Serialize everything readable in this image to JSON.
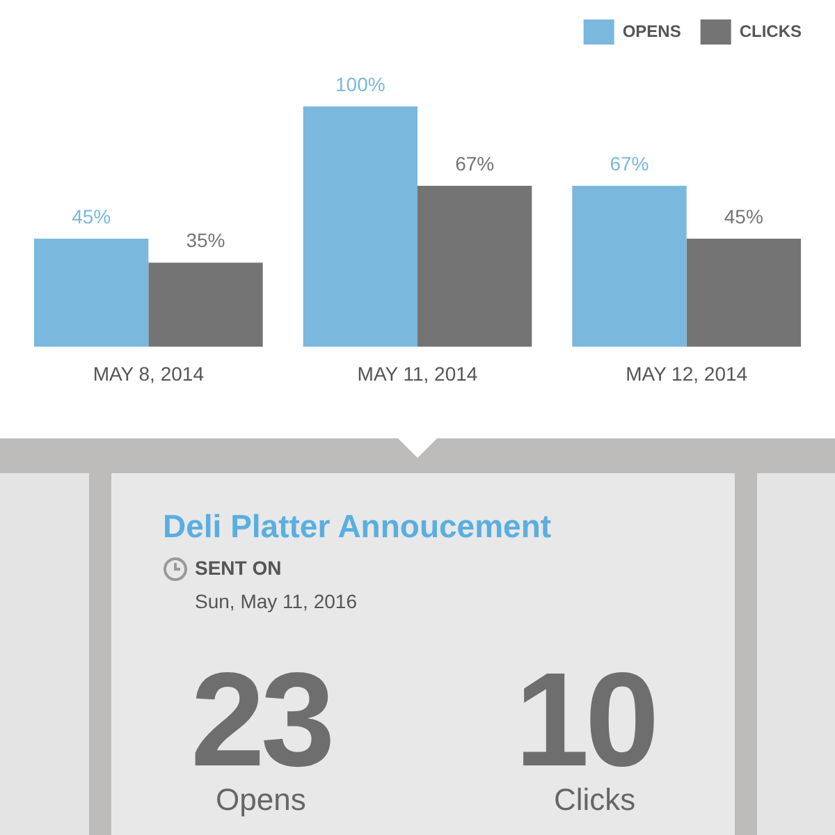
{
  "chart_data": [
    {
      "type": "bar",
      "categories": [
        "MAY 8, 2014",
        "MAY 11, 2014",
        "MAY 12, 2014"
      ],
      "legend": "top right",
      "series": [
        {
          "name": "OPENS",
          "color": "#7ab8dd",
          "values": [
            45,
            100,
            67
          ],
          "value_labels": [
            "45%",
            "100%",
            "67%"
          ]
        },
        {
          "name": "CLICKS",
          "color": "#757474",
          "values": [
            35,
            67,
            45
          ],
          "value_labels": [
            "35%",
            "67%",
            "45%"
          ]
        }
      ]
    },
    {
      "type": "other",
      "title": "Deli Platter Annoucement",
      "annotations": [
        "SENT ON",
        "Sun, May 11, 2016",
        "23",
        "Opens",
        "10",
        "Clicks"
      ]
    }
  ]
}
